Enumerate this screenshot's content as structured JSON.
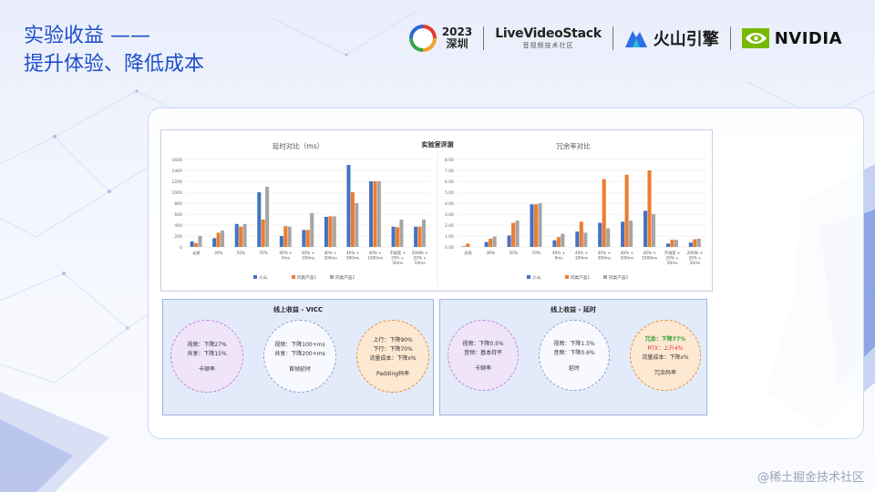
{
  "title": {
    "line1": "实验收益 ——",
    "line2": "提升体验、降低成本"
  },
  "logos": {
    "lvs_year": "2023",
    "lvs_city": "深圳",
    "livevideostack_name": "LiveVideoStack",
    "livevideostack_sub": "音视频技术社区",
    "volcano_name": "火山引擎",
    "nvidia_name": "NVIDIA"
  },
  "chart_header": "实验室评测",
  "chart_data": [
    {
      "type": "bar",
      "title": "延时对比（ms）",
      "categories": [
        "无损",
        "30%",
        "50%",
        "70%",
        "40% + 0ms",
        "40% + 100ms",
        "40% + 300ms",
        "40% + 500ms",
        "40% + 1000ms",
        "不限宽 + 20% + 50ms",
        "2000k + 20% + 50ms"
      ],
      "category_lines": [
        [
          "无损"
        ],
        [
          "30%"
        ],
        [
          "50%"
        ],
        [
          "70%"
        ],
        [
          "40% +",
          "0ms"
        ],
        [
          "40% +",
          "100ms"
        ],
        [
          "40% +",
          "300ms"
        ],
        [
          "40% +",
          "500ms"
        ],
        [
          "40% +",
          "1000ms"
        ],
        [
          "不限宽 +",
          "20% +",
          "50ms"
        ],
        [
          "2000k +",
          "20% +",
          "50ms"
        ]
      ],
      "series": [
        {
          "name": "火山",
          "values": [
            100,
            160,
            420,
            1000,
            200,
            310,
            550,
            1500,
            1200,
            370,
            370
          ]
        },
        {
          "name": "同类产品1",
          "values": [
            70,
            260,
            370,
            500,
            380,
            310,
            560,
            1000,
            1200,
            360,
            370
          ]
        },
        {
          "name": "同类产品2",
          "values": [
            200,
            300,
            420,
            1100,
            370,
            620,
            560,
            800,
            1200,
            500,
            500
          ]
        }
      ],
      "ylim": [
        0,
        1600
      ],
      "yticks": [
        0,
        200,
        400,
        600,
        800,
        1000,
        1200,
        1400,
        1600
      ],
      "legend": "bottom",
      "grid": true
    },
    {
      "type": "bar",
      "title": "冗余率对比",
      "categories": [
        "无损",
        "30%",
        "50%",
        "70%",
        "40% + 0ms",
        "40% + 100ms",
        "40% + 300ms",
        "40% + 500ms",
        "40% + 1000ms",
        "不限宽 + 20% + 50ms",
        "2000k + 20% + 50ms"
      ],
      "category_lines": [
        [
          "无损"
        ],
        [
          "30%"
        ],
        [
          "50%"
        ],
        [
          "70%"
        ],
        [
          "40% +",
          "0ms"
        ],
        [
          "40% +",
          "100ms"
        ],
        [
          "40% +",
          "300ms"
        ],
        [
          "40% +",
          "500ms"
        ],
        [
          "40% +",
          "1000ms"
        ],
        [
          "不限宽 +",
          "20% +",
          "50ms"
        ],
        [
          "2000k +",
          "20% +",
          "50ms"
        ]
      ],
      "series": [
        {
          "name": "火山",
          "values": [
            0.05,
            0.45,
            1.05,
            3.9,
            0.6,
            1.4,
            2.2,
            2.3,
            3.3,
            0.3,
            0.4
          ]
        },
        {
          "name": "同类产品1",
          "values": [
            0.3,
            0.75,
            2.2,
            3.9,
            0.9,
            2.3,
            6.2,
            6.6,
            7.0,
            0.65,
            0.7
          ]
        },
        {
          "name": "同类产品2",
          "values": [
            0.0,
            0.95,
            2.4,
            4.0,
            1.2,
            1.3,
            1.7,
            2.4,
            3.0,
            0.65,
            0.75
          ]
        }
      ],
      "ylim": [
        0,
        8
      ],
      "yticks": [
        "0.00",
        "1.00",
        "2.00",
        "3.00",
        "4.00",
        "5.00",
        "6.00",
        "7.00",
        "8.00"
      ],
      "legend": "bottom",
      "grid": true
    }
  ],
  "colors": {
    "s1": "#4472c4",
    "s2": "#ed7d31",
    "s3": "#a5a5a5",
    "title": "#1f4ec9",
    "red": "#e23b2e",
    "green": "#2e9e3a"
  },
  "cards": {
    "vicc": {
      "title": "线上收益 - VICC",
      "c1": {
        "lines": [
          "视频：下降27%",
          "共享：下降15%"
        ],
        "caption": "卡顿率"
      },
      "c2": {
        "lines": [
          "视频：下降100+ms",
          "共享：下降200+ms"
        ],
        "caption": "首帧延时"
      },
      "c3": {
        "lines": [
          "上行：下降90%",
          "下行：下降70%",
          "流量成本：下降x%"
        ],
        "caption": "Padding码率"
      }
    },
    "latency": {
      "title": "线上收益 - 延时",
      "c1": {
        "lines": [
          "视频：下降0.5%",
          "音频：基本持平"
        ],
        "caption": "卡顿率"
      },
      "c2": {
        "lines": [
          "视频：下降1.5%",
          "音频：下降0.6%"
        ],
        "caption": "延时"
      },
      "c3": {
        "line1": "冗余：下降77%",
        "line2": "RTX：上升4%",
        "line3": "流量成本：下降x%",
        "caption": "冗余码率"
      }
    }
  },
  "watermark": "@稀土掘金技术社区"
}
